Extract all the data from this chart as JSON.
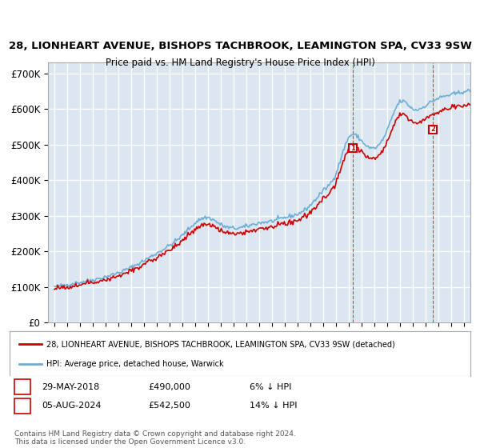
{
  "title1": "28, LIONHEART AVENUE, BISHOPS TACHBROOK, LEAMINGTON SPA, CV33 9SW",
  "title2": "Price paid vs. HM Land Registry's House Price Index (HPI)",
  "ylabel": "",
  "background_color": "#dce6f1",
  "plot_bg_color": "#dce6f1",
  "ylim": [
    0,
    730000
  ],
  "yticks": [
    0,
    100000,
    200000,
    300000,
    400000,
    500000,
    600000,
    700000
  ],
  "ytick_labels": [
    "£0",
    "£100K",
    "£200K",
    "£300K",
    "£400K",
    "£500K",
    "£600K",
    "£700K"
  ],
  "sale1_date": "2018-05-29",
  "sale1_price": 490000,
  "sale1_label": "1",
  "sale2_date": "2024-08-05",
  "sale2_price": 542500,
  "sale2_label": "2",
  "legend_line1": "28, LIONHEART AVENUE, BISHOPS TACHBROOK, LEAMINGTON SPA, CV33 9SW (detached)",
  "legend_line2": "HPI: Average price, detached house, Warwick",
  "table_row1": [
    "1",
    "29-MAY-2018",
    "£490,000",
    "6% ↓ HPI"
  ],
  "table_row2": [
    "2",
    "05-AUG-2024",
    "£542,500",
    "14% ↓ HPI"
  ],
  "footer": "Contains HM Land Registry data © Crown copyright and database right 2024.\nThis data is licensed under the Open Government Licence v3.0.",
  "line_hpi_color": "#6baed6",
  "line_price_color": "#cc0000",
  "sale_marker_color": "#cc0000",
  "grid_color": "#ffffff",
  "border_color": "#aaaaaa"
}
